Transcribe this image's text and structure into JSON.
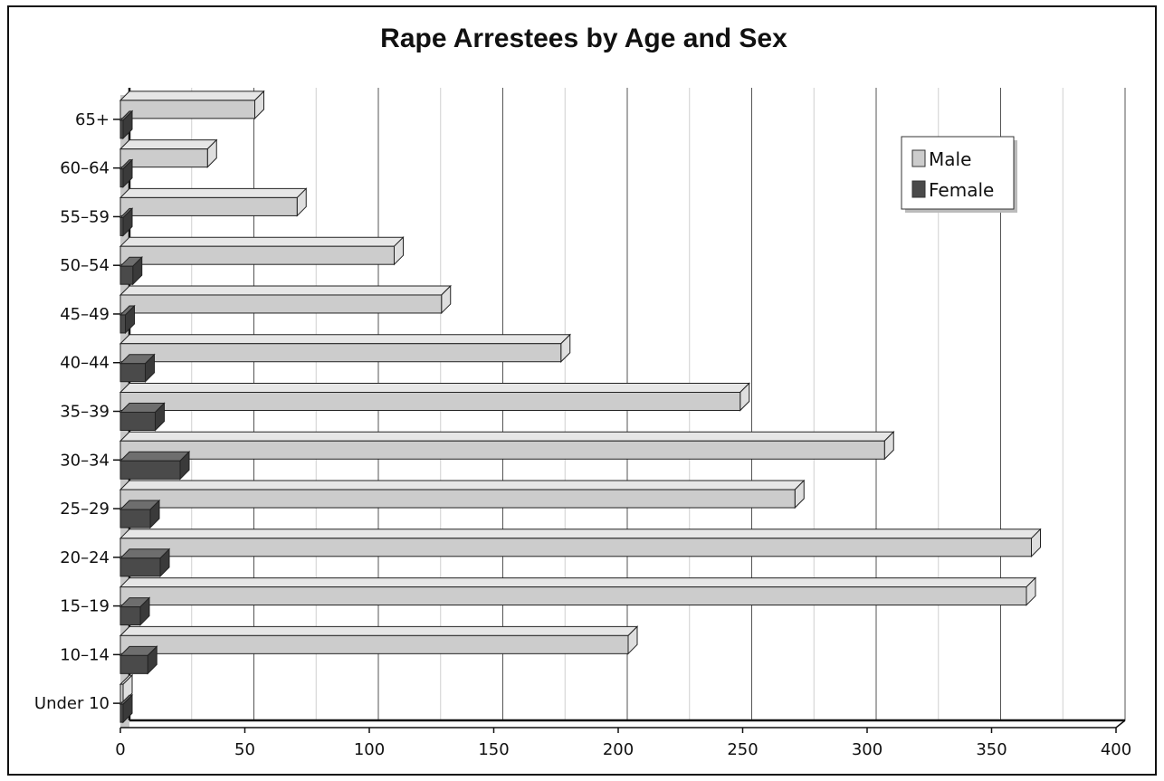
{
  "chart_data": {
    "type": "bar",
    "orientation": "horizontal",
    "style": "3d",
    "title": "Rape Arrestees by Age and Sex",
    "xlabel": "",
    "ylabel": "",
    "xlim": [
      0,
      400
    ],
    "x_ticks": [
      "0",
      "50",
      "100",
      "150",
      "200",
      "250",
      "300",
      "350",
      "400"
    ],
    "categories": [
      "Under 10",
      "10–14",
      "15–19",
      "20–24",
      "25–29",
      "30–34",
      "35–39",
      "40–44",
      "45–49",
      "50–54",
      "55–59",
      "60–64",
      "65+"
    ],
    "series": [
      {
        "name": "Male",
        "color": "#cccccc",
        "values": [
          0,
          204,
          364,
          366,
          271,
          307,
          249,
          177,
          129,
          110,
          71,
          35,
          54
        ]
      },
      {
        "name": "Female",
        "color": "#4a4a4a",
        "values": [
          0,
          11,
          8,
          16,
          12,
          24,
          14,
          10,
          2,
          5,
          0,
          0,
          0
        ]
      }
    ],
    "grid": true,
    "legend_position": "top-right"
  }
}
